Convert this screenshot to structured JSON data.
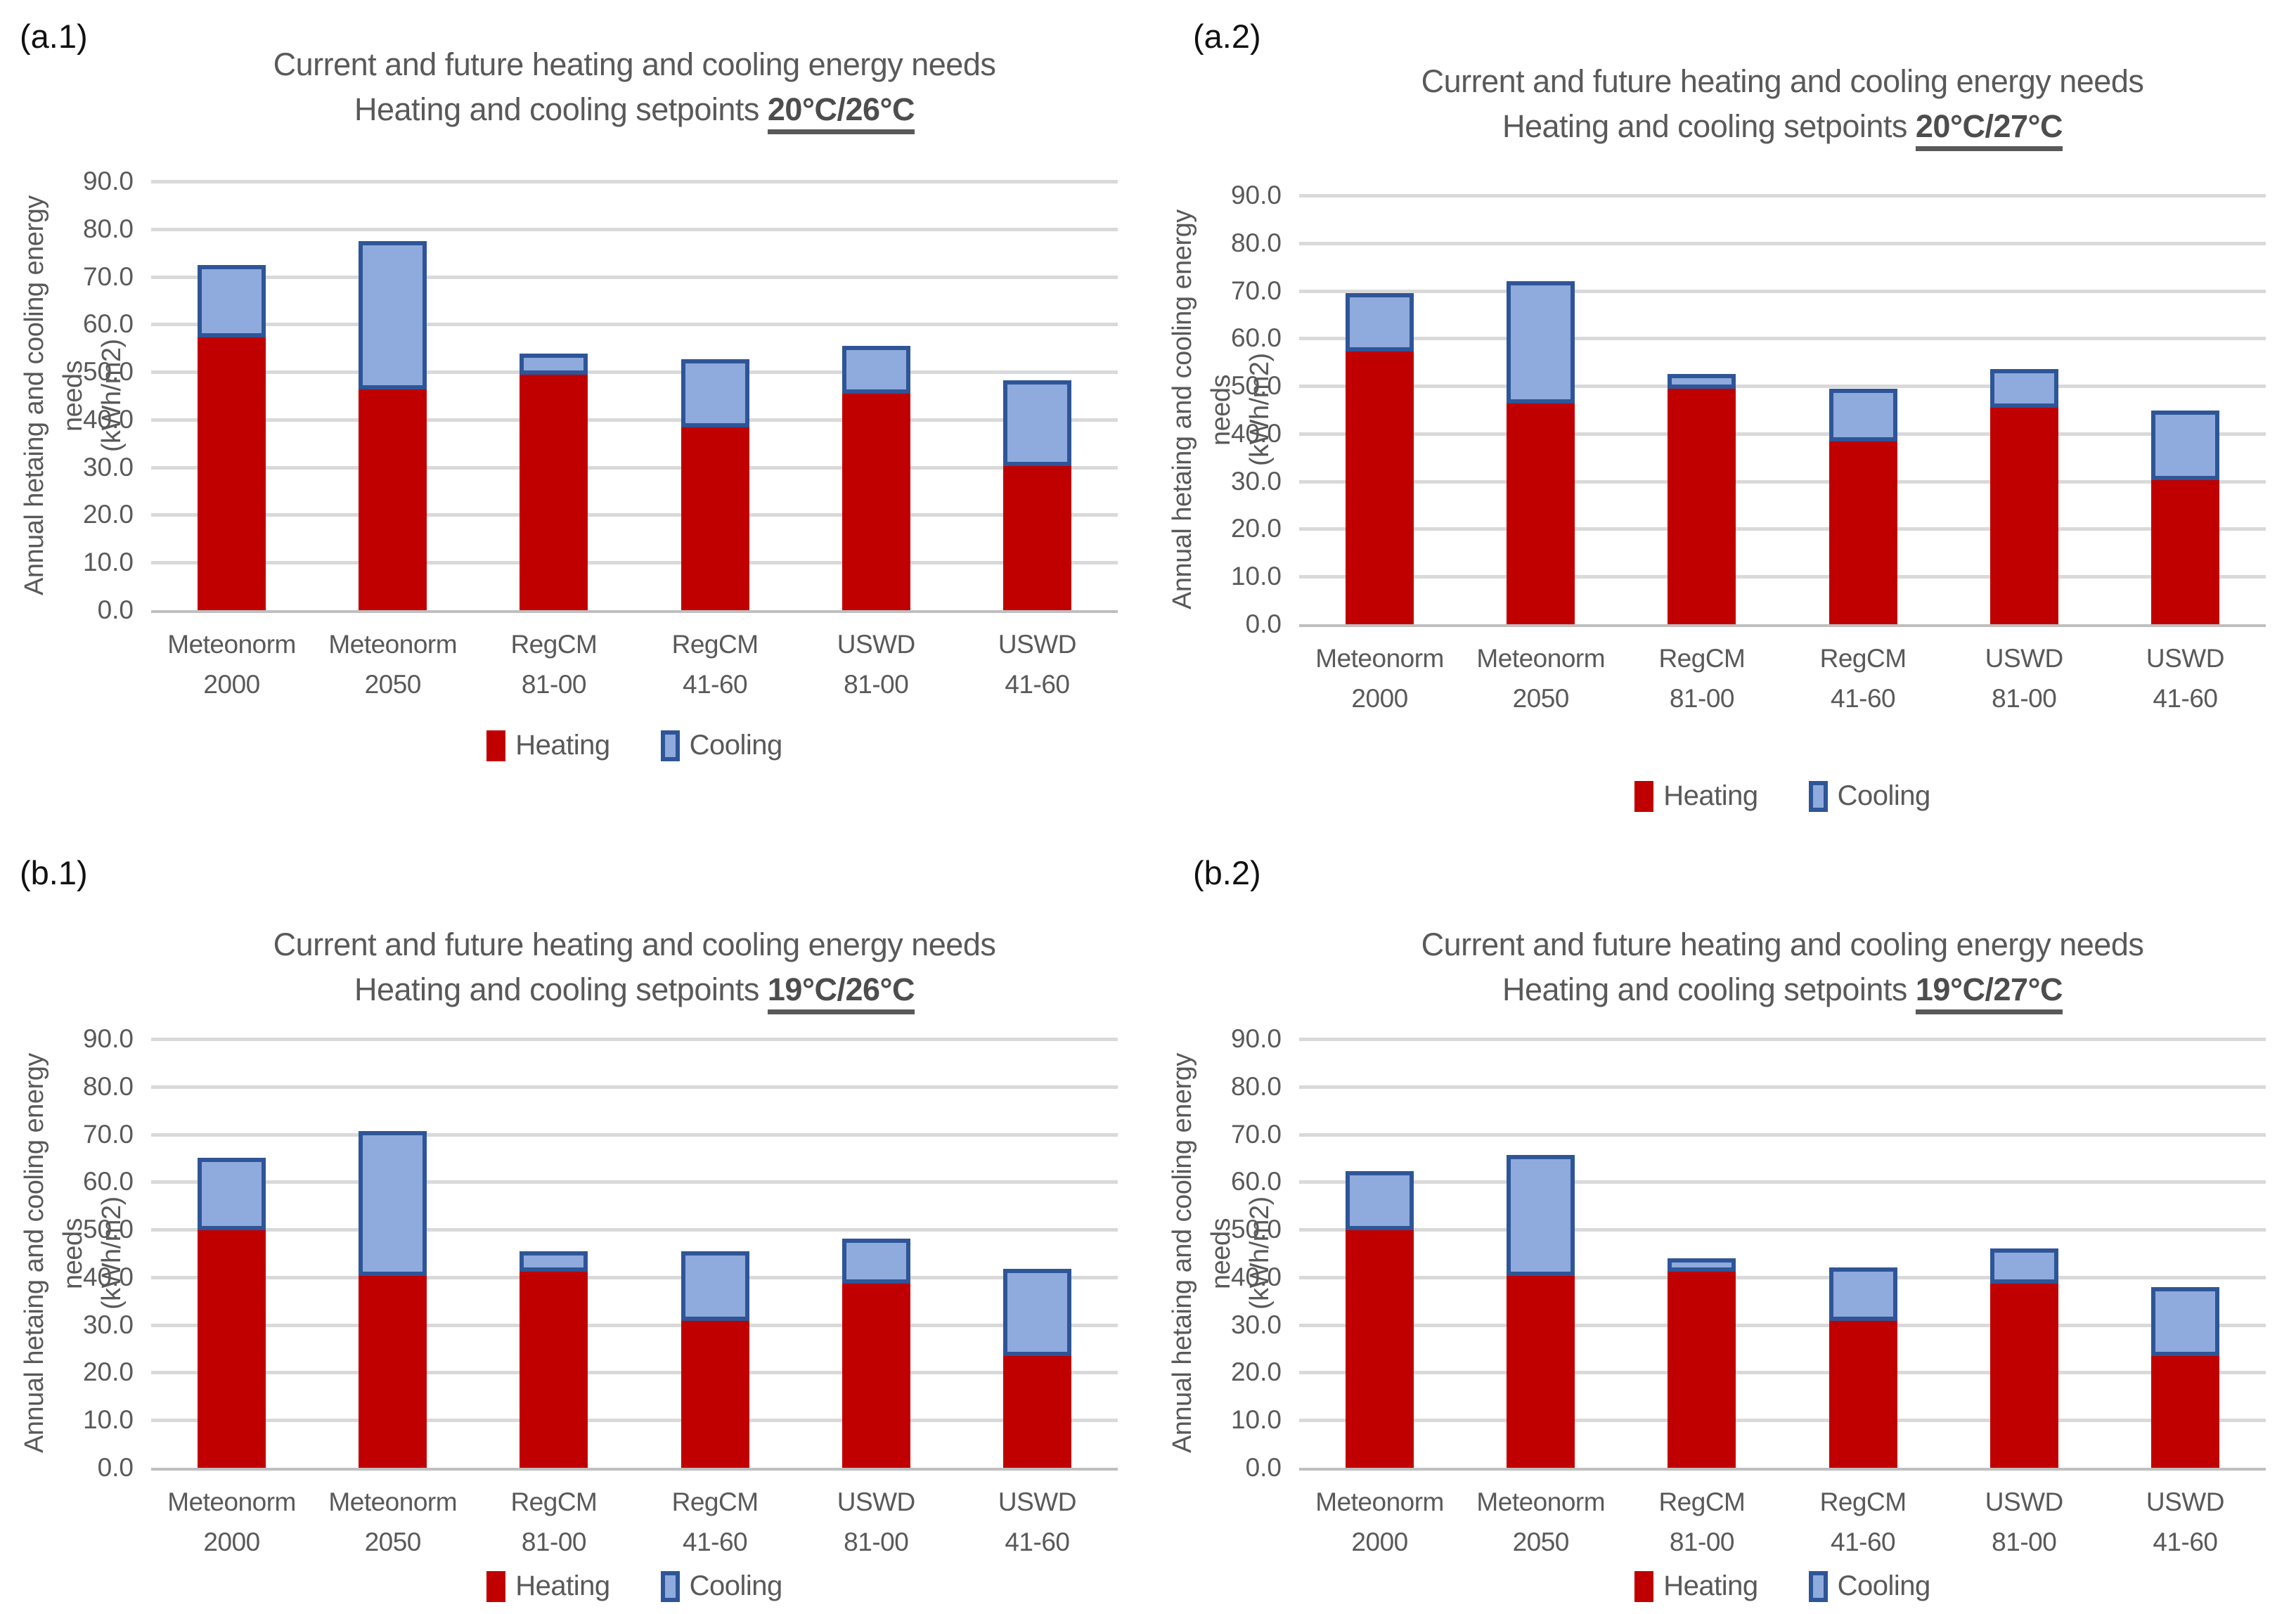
{
  "figure": {
    "y_axis": {
      "label_line1": "Annual hetaing and cooling energy needs",
      "label_line2": "(kWh/m2)",
      "ticks": [
        "90.0",
        "80.0",
        "70.0",
        "60.0",
        "50.0",
        "40.0",
        "30.0",
        "20.0",
        "10.0",
        "0.0"
      ],
      "min": 0,
      "max": 90
    },
    "categories": [
      {
        "line1": "Meteonorm",
        "line2": "2000"
      },
      {
        "line1": "Meteonorm",
        "line2": "2050"
      },
      {
        "line1": "RegCM",
        "line2": "81-00"
      },
      {
        "line1": "RegCM",
        "line2": "41-60"
      },
      {
        "line1": "USWD",
        "line2": "81-00"
      },
      {
        "line1": "USWD",
        "line2": "41-60"
      }
    ],
    "legend": {
      "heating_label": "Heating",
      "cooling_label": "Cooling"
    },
    "colors": {
      "heating": "#c00000",
      "cooling_fill": "#8faadc",
      "cooling_border": "#2e5597",
      "gridline": "#d9d9d9",
      "baseline": "#bfbfbf",
      "title_text": "#595959",
      "tick_text": "#595959",
      "panel_label": "#111111"
    }
  },
  "chart_data": [
    {
      "panel_label": "(a.1)",
      "type": "bar",
      "stacked": true,
      "title_line1": "Current and future heating and cooling energy needs",
      "title_line2_prefix": "Heating and cooling setpoints ",
      "setpoints": "20°C/26°C",
      "ylabel": "Annual hetaing and cooling energy needs (kWh/m2)",
      "ylim": [
        0,
        90
      ],
      "grid": true,
      "legend_position": "bottom",
      "categories": [
        "Meteonorm 2000",
        "Meteonorm 2050",
        "RegCM 81-00",
        "RegCM 41-60",
        "USWD 81-00",
        "USWD 41-60"
      ],
      "series": [
        {
          "name": "Heating",
          "values": [
            57.2,
            46.4,
            49.4,
            38.4,
            45.4,
            30.2
          ]
        },
        {
          "name": "Cooling",
          "values": [
            15.3,
            31.0,
            4.4,
            14.3,
            10.1,
            18.1
          ]
        }
      ]
    },
    {
      "panel_label": "(a.2)",
      "type": "bar",
      "stacked": true,
      "title_line1": "Current and future heating and cooling energy needs",
      "title_line2_prefix": "Heating and cooling setpoints ",
      "setpoints": "20°C/27°C",
      "ylabel": "Annual hetaing and cooling energy needs (kWh/m2)",
      "ylim": [
        0,
        90
      ],
      "grid": true,
      "legend_position": "bottom",
      "categories": [
        "Meteonorm 2000",
        "Meteonorm 2050",
        "RegCM 81-00",
        "RegCM 41-60",
        "USWD 81-00",
        "USWD 41-60"
      ],
      "series": [
        {
          "name": "Heating",
          "values": [
            57.2,
            46.4,
            49.4,
            38.4,
            45.4,
            30.2
          ]
        },
        {
          "name": "Cooling",
          "values": [
            12.3,
            25.6,
            3.2,
            11.0,
            8.2,
            14.6
          ]
        }
      ]
    },
    {
      "panel_label": "(b.1)",
      "type": "bar",
      "stacked": true,
      "title_line1": "Current and future heating and cooling energy needs",
      "title_line2_prefix": "Heating and cooling setpoints ",
      "setpoints": "19°C/26°C",
      "ylabel": "Annual hetaing and cooling energy needs (kWh/m2)",
      "ylim": [
        0,
        90
      ],
      "grid": true,
      "legend_position": "bottom",
      "categories": [
        "Meteonorm 2000",
        "Meteonorm 2050",
        "RegCM 81-00",
        "RegCM 41-60",
        "USWD 81-00",
        "USWD 41-60"
      ],
      "series": [
        {
          "name": "Heating",
          "values": [
            49.8,
            40.3,
            41.2,
            30.8,
            38.7,
            23.4
          ]
        },
        {
          "name": "Cooling",
          "values": [
            15.2,
            30.4,
            4.3,
            14.6,
            9.4,
            18.3
          ]
        }
      ]
    },
    {
      "panel_label": "(b.2)",
      "type": "bar",
      "stacked": true,
      "title_line1": "Current and future heating and cooling energy needs",
      "title_line2_prefix": "Heating and cooling setpoints ",
      "setpoints": "19°C/27°C",
      "ylabel": "Annual hetaing and cooling energy needs (kWh/m2)",
      "ylim": [
        0,
        90
      ],
      "grid": true,
      "legend_position": "bottom",
      "categories": [
        "Meteonorm 2000",
        "Meteonorm 2050",
        "RegCM 81-00",
        "RegCM 41-60",
        "USWD 81-00",
        "USWD 41-60"
      ],
      "series": [
        {
          "name": "Heating",
          "values": [
            49.8,
            40.3,
            41.2,
            30.8,
            38.7,
            23.4
          ]
        },
        {
          "name": "Cooling",
          "values": [
            12.4,
            25.4,
            2.8,
            11.2,
            7.4,
            14.5
          ]
        }
      ]
    }
  ]
}
